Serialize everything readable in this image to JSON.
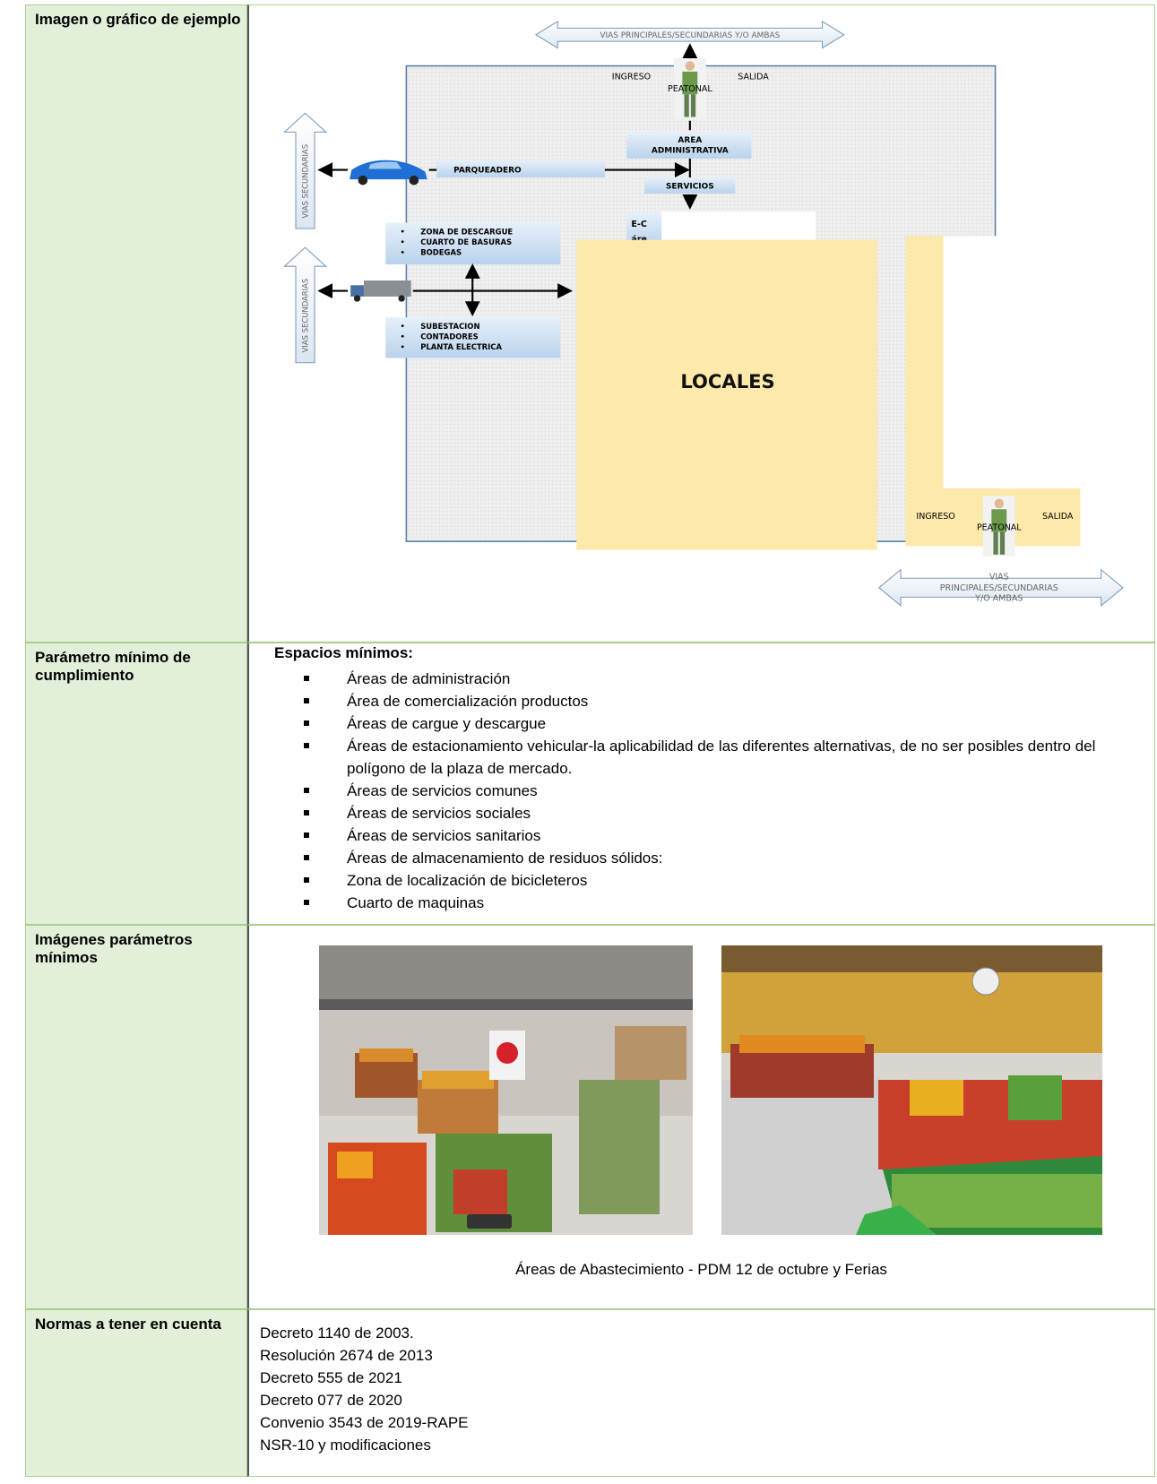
{
  "table": {
    "rows": [
      {
        "label": "Imagen o gráfico de ejemplo",
        "diagram": {
          "top_road": "VIAS PRINCIPALES/SECUNDARIAS Y/O AMBAS",
          "top_entry": "INGRESO",
          "top_pedestrian": "PEATONAL",
          "top_exit": "SALIDA",
          "admin": [
            "AREA",
            "ADMINISTRATIVA"
          ],
          "parking": "PARQUEADERO",
          "services": "SERVICIOS",
          "side_road_1": "VIAS SECUNDARIAS",
          "side_road_2": "VIAS SECUNDARIAS",
          "upper_box": [
            "ZONA DE DESCARGUE",
            "CUARTO DE BASURAS",
            "BODEGAS"
          ],
          "lower_box": [
            "SUBESTACION",
            "CONTADORES",
            "PLANTA ELECTRICA"
          ],
          "partial": [
            "E-C",
            "áre"
          ],
          "shops": "LOCALES",
          "bottom_entry": "INGRESO",
          "bottom_pedestrian": "PEATONAL",
          "bottom_exit": "SALIDA",
          "bottom_road": [
            "VIAS",
            "PRINCIPALES/SECUNDARIAS",
            "Y/O AMBAS"
          ]
        }
      },
      {
        "label": "Parámetro mínimo de cumplimiento",
        "heading": "Espacios mínimos:",
        "items": [
          "Áreas de administración",
          "Área de comercialización productos",
          "Áreas de cargue y descargue",
          "Áreas de estacionamiento vehicular-la aplicabilidad de las diferentes alternativas, de no ser posibles dentro del polígono de la plaza de mercado.",
          "Áreas de servicios comunes",
          "Áreas de servicios sociales",
          "Áreas de servicios sanitarios",
          "Áreas de almacenamiento de residuos sólidos:",
          "Zona de localización de bicicleteros",
          "Cuarto de maquinas"
        ]
      },
      {
        "label": "Imágenes parámetros mínimos",
        "caption": "Áreas de Abastecimiento - PDM 12 de octubre y Ferias"
      },
      {
        "label": "Normas a tener en cuenta",
        "lines": [
          "Decreto 1140 de 2003.",
          "Resolución 2674 de 2013",
          "Decreto 555 de 2021",
          "Decreto 077 de 2020",
          "Convenio 3543 de 2019-RAPE",
          "NSR-10 y modificaciones"
        ]
      }
    ]
  }
}
